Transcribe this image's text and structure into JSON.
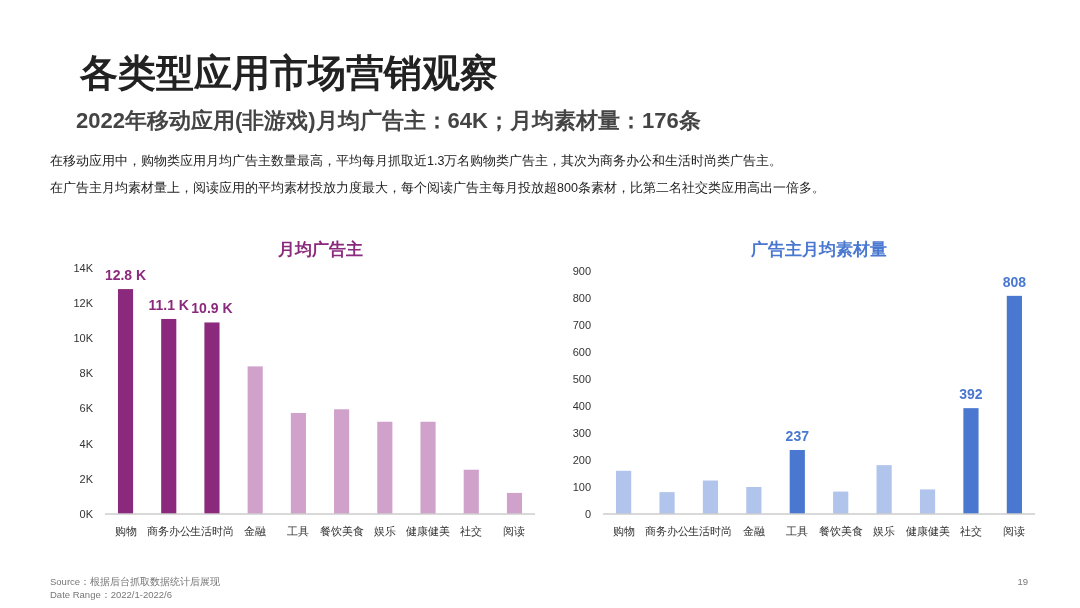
{
  "chart_data": [
    {
      "type": "bar",
      "title": "各类型应用市场营销观察",
      "subtitle": "2022年移动应用(非游戏)月均广告主：64K；月均素材量：176条",
      "annotations": [
        "在移动应用中，购物类应用月均广告主数量最高，平均每月抓取近1.3万名购物类广告主，其次为商务办公和生活时尚类广告主。",
        "在广告主月均素材量上，阅读应用的平均素材投放力度最大，每个阅读广告主每月投放超800条素材，比第二名社交类应用高出一倍多。",
        "Source：根据后台抓取数据统计后展现",
        "Date Range：2022/1-2022/6",
        "19"
      ],
      "xlabel": "月均广告主",
      "categories": [
        "购物",
        "商务办公",
        "生活时尚",
        "金融",
        "工具",
        "餐饮美食",
        "娱乐",
        "健康健美",
        "社交",
        "阅读"
      ],
      "values": [
        12.8,
        11.1,
        10.9,
        8.4,
        5.75,
        5.96,
        5.25,
        5.25,
        2.52,
        1.2
      ],
      "colors": [
        "#8b2a7d",
        "#8b2a7d",
        "#8b2a7d",
        "#d0a1cb",
        "#d0a1cb",
        "#d0a1cb",
        "#d0a1cb",
        "#d0a1cb",
        "#d0a1cb",
        "#d0a1cb"
      ],
      "value_labels": [
        "12.8 K",
        "11.1 K",
        "10.9 K",
        null,
        null,
        null,
        null,
        null,
        null,
        null
      ],
      "ylim": [
        0,
        14
      ],
      "yticks": [
        {
          "value": 0,
          "label": "0K"
        },
        {
          "value": 2,
          "label": "2K"
        },
        {
          "value": 4,
          "label": "4K"
        },
        {
          "value": 6,
          "label": "6K"
        },
        {
          "value": 8,
          "label": "8K"
        },
        {
          "value": 10,
          "label": "10K"
        },
        {
          "value": 12,
          "label": "12K"
        },
        {
          "value": 14,
          "label": "14K"
        }
      ],
      "grid": false
    },
    {
      "type": "bar",
      "title": "广告主月均素材量",
      "categories": [
        "购物",
        "商务办公",
        "生活时尚",
        "金融",
        "工具",
        "餐饮美食",
        "娱乐",
        "健康健美",
        "社交",
        "阅读"
      ],
      "values": [
        160,
        81,
        124,
        100,
        237,
        83,
        181,
        91,
        392,
        808
      ],
      "colors": [
        "#b0c4ec",
        "#b0c4ec",
        "#b0c4ec",
        "#b0c4ec",
        "#4a78d0",
        "#b0c4ec",
        "#b0c4ec",
        "#b0c4ec",
        "#4a78d0",
        "#4a78d0"
      ],
      "value_labels": [
        null,
        null,
        null,
        null,
        "237",
        null,
        null,
        null,
        "392",
        "808"
      ],
      "ylim": [
        0,
        900
      ],
      "yticks": [
        0,
        100,
        200,
        300,
        400,
        500,
        600,
        700,
        800,
        900
      ],
      "grid": false
    }
  ]
}
